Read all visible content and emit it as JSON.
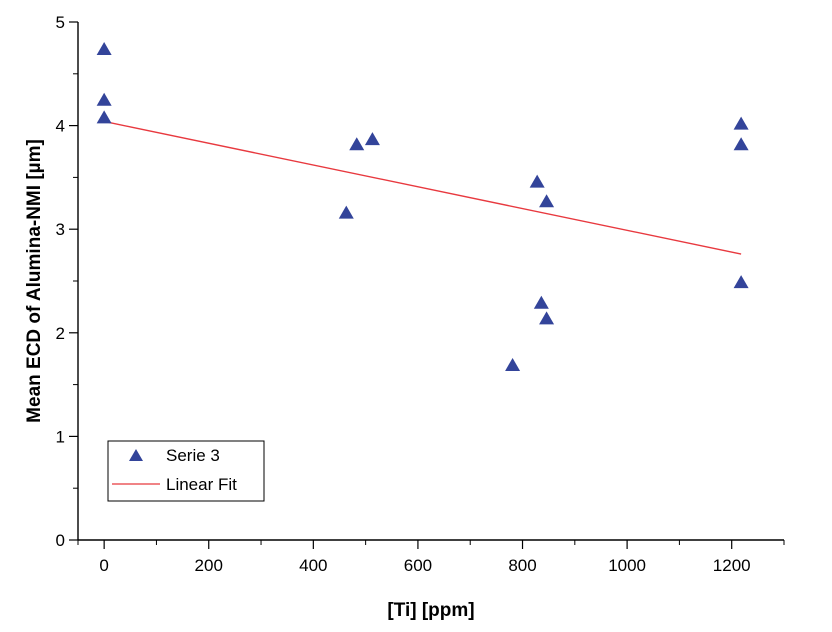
{
  "chart_data": {
    "type": "scatter",
    "title": "",
    "xlabel": "[Ti] [ppm]",
    "ylabel": "Mean ECD of Alumina-NMI [µm]",
    "xlim": [
      -50,
      1300
    ],
    "ylim": [
      0,
      5
    ],
    "x_ticks": [
      0,
      200,
      400,
      600,
      800,
      1000,
      1200
    ],
    "y_ticks": [
      0,
      1,
      2,
      3,
      4,
      5
    ],
    "grid": false,
    "legend_position": "bottom-left",
    "series": [
      {
        "name": "Serie 3",
        "kind": "scatter",
        "marker": "triangle",
        "color": "#33449a",
        "points": [
          {
            "x": 0,
            "y": 4.73
          },
          {
            "x": 0,
            "y": 4.24
          },
          {
            "x": 0,
            "y": 4.07
          },
          {
            "x": 463,
            "y": 3.15
          },
          {
            "x": 483,
            "y": 3.81
          },
          {
            "x": 513,
            "y": 3.86
          },
          {
            "x": 781,
            "y": 1.68
          },
          {
            "x": 828,
            "y": 3.45
          },
          {
            "x": 836,
            "y": 2.28
          },
          {
            "x": 846,
            "y": 3.26
          },
          {
            "x": 846,
            "y": 2.13
          },
          {
            "x": 1218,
            "y": 4.01
          },
          {
            "x": 1218,
            "y": 3.81
          },
          {
            "x": 1218,
            "y": 2.48
          }
        ]
      },
      {
        "name": "Linear Fit",
        "kind": "line",
        "color": "#e8393f",
        "points": [
          {
            "x": 0,
            "y": 4.04
          },
          {
            "x": 1218,
            "y": 2.76
          }
        ]
      }
    ]
  }
}
